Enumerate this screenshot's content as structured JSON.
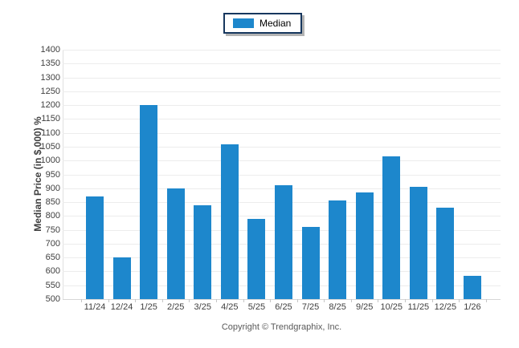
{
  "footer": {
    "copyright": "Copyright © Trendgraphix, Inc."
  },
  "colors": {
    "bar": "#1d87cc",
    "gridline": "#ececec",
    "axis": "#d6d6d6",
    "tick": "#c6c6c6",
    "axis_text": "#404040",
    "y_title_text": "#3f3f3f",
    "footer_text": "#595959",
    "legend_border": "#17375e",
    "legend_shadow": "#b3b3b3"
  },
  "chart_data": {
    "type": "bar",
    "title": "",
    "series_name": "Median",
    "categories": [
      "11/24",
      "12/24",
      "1/25",
      "2/25",
      "3/25",
      "4/25",
      "5/25",
      "6/25",
      "7/25",
      "8/25",
      "9/25",
      "10/25",
      "11/25",
      "12/25",
      "1/26"
    ],
    "values": [
      870,
      650,
      1200,
      900,
      840,
      1060,
      790,
      910,
      760,
      855,
      885,
      1015,
      905,
      830,
      585
    ],
    "xlabel": "",
    "ylabel": "Median Price (in $,000) %",
    "ylim": [
      500,
      1400
    ],
    "ytick_step": 50,
    "grid": true,
    "legend_position": "top-center",
    "bar_color": "#1d87cc"
  }
}
